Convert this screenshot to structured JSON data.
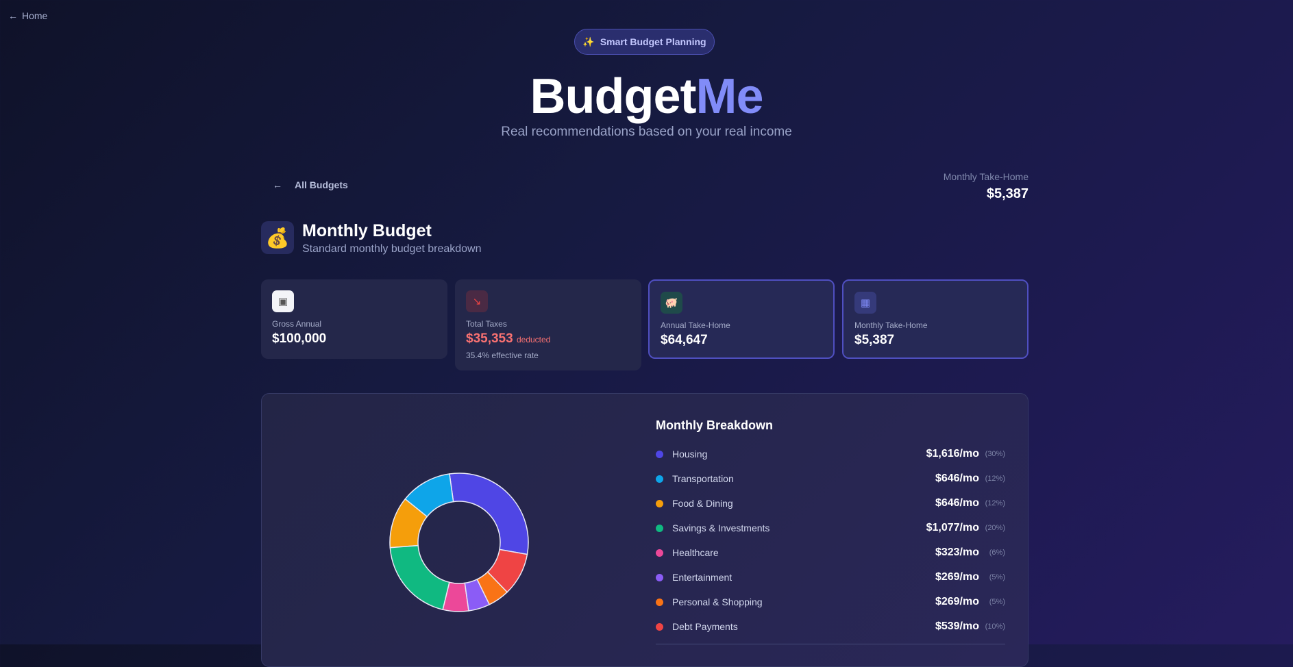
{
  "nav": {
    "home": "Home",
    "back": "All Budgets"
  },
  "badge": "Smart Budget Planning",
  "title": {
    "a": "Budget",
    "b": "Me"
  },
  "subtitle": "Real recommendations based on your real income",
  "monthly_take_home": {
    "label": "Monthly Take-Home",
    "value": "$5,387"
  },
  "budget": {
    "icon": "money-bag-icon",
    "title": "Monthly Budget",
    "subtitle": "Standard monthly budget breakdown"
  },
  "cards": [
    {
      "icon": "wallet-icon",
      "label": "Gross Annual",
      "value": "$100,000"
    },
    {
      "icon": "trending-down-icon",
      "label": "Total Taxes",
      "value": "$35,353",
      "suffix": "deducted",
      "note": "35.4% effective rate"
    },
    {
      "icon": "piggy-bank-icon",
      "label": "Annual Take-Home",
      "value": "$64,647"
    },
    {
      "icon": "calendar-icon",
      "label": "Monthly Take-Home",
      "value": "$5,387"
    }
  ],
  "breakdown": {
    "title": "Monthly Breakdown",
    "items": [
      {
        "name": "Housing",
        "amount": "$1,616/mo",
        "pct": "(30%)",
        "value": 30,
        "color": "#4f46e5"
      },
      {
        "name": "Transportation",
        "amount": "$646/mo",
        "pct": "(12%)",
        "value": 12,
        "color": "#0ea5e9"
      },
      {
        "name": "Food & Dining",
        "amount": "$646/mo",
        "pct": "(12%)",
        "value": 12,
        "color": "#f59e0b"
      },
      {
        "name": "Savings & Investments",
        "amount": "$1,077/mo",
        "pct": "(20%)",
        "value": 20,
        "color": "#10b981"
      },
      {
        "name": "Healthcare",
        "amount": "$323/mo",
        "pct": "(6%)",
        "value": 6,
        "color": "#ec4899"
      },
      {
        "name": "Entertainment",
        "amount": "$269/mo",
        "pct": "(5%)",
        "value": 5,
        "color": "#8b5cf6"
      },
      {
        "name": "Personal & Shopping",
        "amount": "$269/mo",
        "pct": "(5%)",
        "value": 5,
        "color": "#f97316"
      },
      {
        "name": "Debt Payments",
        "amount": "$539/mo",
        "pct": "(10%)",
        "value": 10,
        "color": "#ef4444"
      }
    ]
  }
}
